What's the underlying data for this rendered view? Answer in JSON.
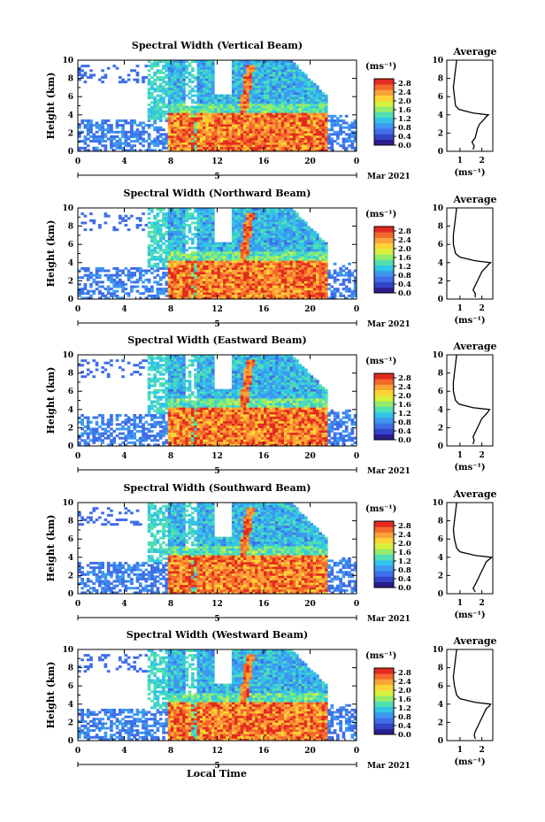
{
  "figure": {
    "xlabel": "Local Time",
    "date_label": "Mar 2021",
    "ylabel": "Height (km)",
    "colorbar_unit": "(ms⁻¹)",
    "avg_title": "Average",
    "avg_xlabel": "(ms⁻¹)"
  },
  "colors": {
    "scale": [
      "#2b1d8f",
      "#3344c8",
      "#3f6ee8",
      "#3d98f0",
      "#33c4e6",
      "#4fe0b3",
      "#93ec6a",
      "#d9ef3f",
      "#fbd535",
      "#fba336",
      "#f4692b",
      "#e22a20"
    ]
  },
  "chart_data": [
    {
      "type": "heatmap",
      "title": "Spectral Width (Vertical Beam)",
      "x_ticks": [
        "0",
        "4",
        "8",
        "12",
        "16",
        "20",
        "0"
      ],
      "x_range": [
        0,
        24
      ],
      "y_ticks": [
        "0",
        "2",
        "4",
        "6",
        "8",
        "10"
      ],
      "y_range": [
        0,
        10
      ],
      "mid_day_label": "5",
      "colorbar": {
        "ticks": [
          "0.0",
          "0.4",
          "0.8",
          "1.2",
          "1.6",
          "2.0",
          "2.4",
          "2.8"
        ],
        "range": [
          0,
          3.0
        ]
      },
      "average_profile": {
        "x_ticks": [
          "1",
          "2"
        ],
        "y_ticks": [
          "0",
          "2",
          "4",
          "6",
          "8",
          "10"
        ],
        "heights_km": [
          0.2,
          0.6,
          1.0,
          1.5,
          2.0,
          2.5,
          3.0,
          3.5,
          3.8,
          4.0,
          4.2,
          4.6,
          5.0,
          6.0,
          7.0,
          8.0,
          9.0,
          10.0
        ],
        "values": [
          1.6,
          1.65,
          1.55,
          1.7,
          1.75,
          1.8,
          1.9,
          2.1,
          2.2,
          2.3,
          1.6,
          0.95,
          0.8,
          0.75,
          0.7,
          0.75,
          0.8,
          0.85
        ]
      }
    },
    {
      "type": "heatmap",
      "title": "Spectral Width (Northward Beam)",
      "x_ticks": [
        "0",
        "4",
        "8",
        "12",
        "16",
        "20",
        "0"
      ],
      "x_range": [
        0,
        24
      ],
      "y_ticks": [
        "0",
        "2",
        "4",
        "6",
        "8",
        "10"
      ],
      "y_range": [
        0,
        10
      ],
      "mid_day_label": "5",
      "colorbar": {
        "ticks": [
          "0.0",
          "0.4",
          "0.8",
          "1.2",
          "1.6",
          "2.0",
          "2.4",
          "2.8"
        ],
        "range": [
          0,
          3.0
        ]
      },
      "average_profile": {
        "x_ticks": [
          "1",
          "2"
        ],
        "y_ticks": [
          "0",
          "2",
          "4",
          "6",
          "8",
          "10"
        ],
        "heights_km": [
          0.2,
          0.6,
          1.0,
          1.5,
          2.0,
          2.5,
          3.0,
          3.5,
          3.8,
          4.0,
          4.2,
          4.6,
          5.0,
          6.0,
          7.0,
          8.0,
          9.0,
          10.0
        ],
        "values": [
          1.7,
          1.7,
          1.6,
          1.7,
          1.8,
          1.9,
          2.0,
          2.2,
          2.3,
          2.4,
          1.7,
          1.0,
          0.8,
          0.7,
          0.7,
          0.75,
          0.8,
          0.85
        ]
      }
    },
    {
      "type": "heatmap",
      "title": "Spectral Width (Eastward Beam)",
      "x_ticks": [
        "0",
        "4",
        "8",
        "12",
        "16",
        "20",
        "0"
      ],
      "x_range": [
        0,
        24
      ],
      "y_ticks": [
        "0",
        "2",
        "4",
        "6",
        "8",
        "10"
      ],
      "y_range": [
        0,
        10
      ],
      "mid_day_label": "5",
      "colorbar": {
        "ticks": [
          "0.0",
          "0.4",
          "0.8",
          "1.2",
          "1.6",
          "2.0",
          "2.4",
          "2.8"
        ],
        "range": [
          0,
          3.0
        ]
      },
      "average_profile": {
        "x_ticks": [
          "1",
          "2"
        ],
        "y_ticks": [
          "0",
          "2",
          "4",
          "6",
          "8",
          "10"
        ],
        "heights_km": [
          0.2,
          0.6,
          1.0,
          1.5,
          2.0,
          2.5,
          3.0,
          3.5,
          3.8,
          4.0,
          4.2,
          4.6,
          5.0,
          6.0,
          7.0,
          8.0,
          9.0,
          10.0
        ],
        "values": [
          1.6,
          1.65,
          1.6,
          1.7,
          1.8,
          1.9,
          2.0,
          2.2,
          2.3,
          2.35,
          1.6,
          0.95,
          0.8,
          0.7,
          0.7,
          0.75,
          0.8,
          0.85
        ]
      }
    },
    {
      "type": "heatmap",
      "title": "Spectral Width (Southward Beam)",
      "x_ticks": [
        "0",
        "4",
        "8",
        "12",
        "16",
        "20",
        "0"
      ],
      "x_range": [
        0,
        24
      ],
      "y_ticks": [
        "0",
        "2",
        "4",
        "6",
        "8",
        "10"
      ],
      "y_range": [
        0,
        10
      ],
      "mid_day_label": "5",
      "colorbar": {
        "ticks": [
          "0.0",
          "0.4",
          "0.8",
          "1.2",
          "1.6",
          "2.0",
          "2.4",
          "2.8"
        ],
        "range": [
          0,
          3.0
        ]
      },
      "average_profile": {
        "x_ticks": [
          "1",
          "2"
        ],
        "y_ticks": [
          "0",
          "2",
          "4",
          "6",
          "8",
          "10"
        ],
        "heights_km": [
          0.2,
          0.6,
          1.0,
          1.5,
          2.0,
          2.5,
          3.0,
          3.5,
          3.8,
          4.0,
          4.2,
          4.6,
          5.0,
          6.0,
          7.0,
          8.0,
          9.0,
          10.0
        ],
        "values": [
          1.7,
          1.6,
          1.7,
          1.8,
          1.9,
          2.0,
          2.1,
          2.2,
          2.35,
          2.45,
          1.7,
          1.0,
          0.85,
          0.75,
          0.7,
          0.75,
          0.8,
          0.85
        ]
      }
    },
    {
      "type": "heatmap",
      "title": "Spectral Width (Westward Beam)",
      "x_ticks": [
        "0",
        "4",
        "8",
        "12",
        "16",
        "20",
        "0"
      ],
      "x_range": [
        0,
        24
      ],
      "y_ticks": [
        "0",
        "2",
        "4",
        "6",
        "8",
        "10"
      ],
      "y_range": [
        0,
        10
      ],
      "mid_day_label": "5",
      "colorbar": {
        "ticks": [
          "0.0",
          "0.4",
          "0.8",
          "1.2",
          "1.6",
          "2.0",
          "2.4",
          "2.8"
        ],
        "range": [
          0,
          3.0
        ]
      },
      "average_profile": {
        "x_ticks": [
          "1",
          "2"
        ],
        "y_ticks": [
          "0",
          "2",
          "4",
          "6",
          "8",
          "10"
        ],
        "heights_km": [
          0.2,
          0.6,
          1.0,
          1.5,
          2.0,
          2.5,
          3.0,
          3.5,
          3.8,
          4.0,
          4.2,
          4.6,
          5.0,
          6.0,
          7.0,
          8.0,
          9.0,
          10.0
        ],
        "values": [
          1.7,
          1.65,
          1.7,
          1.8,
          1.9,
          2.0,
          2.1,
          2.2,
          2.35,
          2.4,
          1.7,
          1.0,
          0.85,
          0.75,
          0.7,
          0.75,
          0.8,
          0.85
        ]
      }
    }
  ]
}
